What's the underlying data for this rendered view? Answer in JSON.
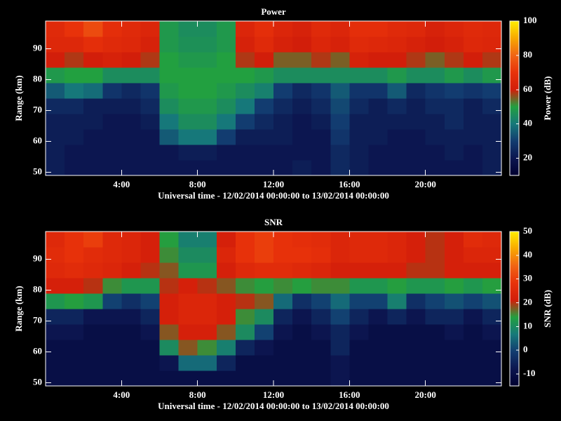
{
  "chart_data": [
    {
      "type": "heatmap",
      "title": "Power",
      "xlabel": "Universal time - 12/02/2014 00:00:00 to 13/02/2014 00:00:00",
      "ylabel": "Range (km)",
      "colorbar_label": "Power (dB)",
      "xlim": [
        0,
        24
      ],
      "xticks": [
        {
          "value": 4,
          "label": "4:00"
        },
        {
          "value": 8,
          "label": "8:00"
        },
        {
          "value": 12,
          "label": "12:00"
        },
        {
          "value": 16,
          "label": "16:00"
        },
        {
          "value": 20,
          "label": "20:00"
        }
      ],
      "ylim": [
        49,
        99
      ],
      "yticks": [
        50,
        60,
        70,
        80,
        90
      ],
      "clim": [
        10,
        100
      ],
      "cticks": [
        20,
        40,
        60,
        80,
        100
      ],
      "colormap": [
        "#000030",
        "#0c1650",
        "#123c70",
        "#16787a",
        "#22a040",
        "#d21e0a",
        "#e8320a",
        "#f06414",
        "#f8a800",
        "#ffee00"
      ],
      "xbins": [
        0,
        1,
        2,
        3,
        4,
        5,
        6,
        7,
        8,
        9,
        10,
        11,
        12,
        13,
        14,
        15,
        16,
        17,
        18,
        19,
        20,
        21,
        22,
        23,
        24
      ],
      "ybins": [
        49,
        54,
        59,
        64,
        69,
        74,
        79,
        84,
        89,
        94,
        99
      ],
      "z": [
        [
          22,
          20,
          20,
          20,
          20,
          20,
          20,
          20,
          20,
          20,
          20,
          20,
          20,
          22,
          20,
          25,
          22,
          20,
          20,
          20,
          20,
          20,
          20,
          22
        ],
        [
          22,
          20,
          20,
          20,
          20,
          20,
          20,
          22,
          22,
          20,
          20,
          20,
          20,
          20,
          20,
          25,
          22,
          20,
          20,
          20,
          20,
          22,
          20,
          22
        ],
        [
          22,
          22,
          20,
          20,
          20,
          20,
          35,
          40,
          40,
          30,
          22,
          22,
          22,
          20,
          20,
          28,
          22,
          22,
          20,
          20,
          22,
          22,
          22,
          22
        ],
        [
          22,
          22,
          22,
          20,
          20,
          22,
          40,
          45,
          45,
          40,
          30,
          25,
          22,
          20,
          22,
          30,
          22,
          22,
          22,
          22,
          22,
          25,
          22,
          22
        ],
        [
          25,
          25,
          22,
          22,
          22,
          25,
          45,
          48,
          48,
          45,
          40,
          30,
          25,
          22,
          25,
          32,
          25,
          22,
          25,
          22,
          25,
          25,
          22,
          25
        ],
        [
          35,
          40,
          38,
          28,
          25,
          28,
          48,
          50,
          50,
          48,
          45,
          42,
          30,
          25,
          28,
          35,
          28,
          28,
          35,
          25,
          28,
          30,
          28,
          30
        ],
        [
          48,
          50,
          50,
          45,
          45,
          45,
          50,
          50,
          50,
          50,
          50,
          48,
          45,
          45,
          45,
          45,
          45,
          45,
          48,
          45,
          45,
          48,
          45,
          48
        ],
        [
          60,
          58,
          60,
          62,
          60,
          58,
          50,
          48,
          48,
          50,
          58,
          60,
          55,
          55,
          58,
          55,
          62,
          60,
          60,
          58,
          55,
          58,
          60,
          58
        ],
        [
          65,
          65,
          68,
          66,
          65,
          62,
          48,
          46,
          46,
          48,
          62,
          66,
          62,
          60,
          64,
          62,
          66,
          65,
          64,
          62,
          60,
          62,
          65,
          64
        ],
        [
          66,
          70,
          75,
          68,
          66,
          64,
          48,
          45,
          45,
          48,
          64,
          68,
          64,
          62,
          66,
          64,
          68,
          68,
          66,
          65,
          62,
          64,
          66,
          65
        ]
      ]
    },
    {
      "type": "heatmap",
      "title": "SNR",
      "xlabel": "Universal time - 12/02/2014 00:00:00 to 13/02/2014 00:00:00",
      "ylabel": "Range (km)",
      "colorbar_label": "SNR (dB)",
      "xlim": [
        0,
        24
      ],
      "xticks": [
        {
          "value": 4,
          "label": "4:00"
        },
        {
          "value": 8,
          "label": "8:00"
        },
        {
          "value": 12,
          "label": "12:00"
        },
        {
          "value": 16,
          "label": "16:00"
        },
        {
          "value": 20,
          "label": "20:00"
        }
      ],
      "ylim": [
        49,
        99
      ],
      "yticks": [
        50,
        60,
        70,
        80,
        90
      ],
      "clim": [
        -15,
        50
      ],
      "cticks": [
        -10,
        0,
        10,
        20,
        30,
        40,
        50
      ],
      "colormap": [
        "#000030",
        "#0c1650",
        "#123c70",
        "#16787a",
        "#22a040",
        "#d21e0a",
        "#e8320a",
        "#f06414",
        "#f8a800",
        "#ffee00"
      ],
      "xbins": [
        0,
        1,
        2,
        3,
        4,
        5,
        6,
        7,
        8,
        9,
        10,
        11,
        12,
        13,
        14,
        15,
        16,
        17,
        18,
        19,
        20,
        21,
        22,
        23,
        24
      ],
      "ybins": [
        49,
        54,
        59,
        64,
        69,
        74,
        79,
        84,
        89,
        94,
        99
      ],
      "z": [
        [
          -10,
          -10,
          -10,
          -10,
          -10,
          -10,
          -10,
          -10,
          -10,
          -10,
          -10,
          -10,
          -10,
          -10,
          -10,
          -8,
          -10,
          -10,
          -10,
          -10,
          -10,
          -10,
          -10,
          -10
        ],
        [
          -10,
          -10,
          -10,
          -10,
          -10,
          -10,
          -8,
          5,
          5,
          -5,
          -10,
          -10,
          -10,
          -10,
          -10,
          -8,
          -10,
          -10,
          -10,
          -10,
          -10,
          -10,
          -10,
          -10
        ],
        [
          -10,
          -10,
          -10,
          -10,
          -10,
          -10,
          10,
          18,
          15,
          8,
          -5,
          -8,
          -10,
          -10,
          -10,
          -5,
          -10,
          -10,
          -10,
          -10,
          -10,
          -10,
          -10,
          -10
        ],
        [
          -8,
          -8,
          -10,
          -10,
          -10,
          -8,
          18,
          22,
          22,
          18,
          10,
          0,
          -8,
          -10,
          -8,
          -5,
          -8,
          -10,
          -10,
          -10,
          -10,
          -8,
          -10,
          -8
        ],
        [
          -5,
          -5,
          -8,
          -8,
          -8,
          -5,
          22,
          24,
          24,
          22,
          15,
          10,
          -5,
          -8,
          -5,
          0,
          -5,
          -8,
          -5,
          -8,
          -5,
          -5,
          -8,
          -5
        ],
        [
          12,
          14,
          12,
          0,
          -3,
          0,
          22,
          24,
          24,
          22,
          20,
          18,
          5,
          -3,
          0,
          5,
          0,
          0,
          8,
          -3,
          0,
          2,
          0,
          2
        ],
        [
          22,
          22,
          20,
          15,
          12,
          12,
          20,
          22,
          20,
          18,
          15,
          14,
          15,
          14,
          15,
          15,
          12,
          12,
          14,
          12,
          12,
          14,
          12,
          14
        ],
        [
          25,
          26,
          25,
          24,
          22,
          20,
          18,
          12,
          12,
          22,
          25,
          26,
          26,
          25,
          24,
          22,
          22,
          22,
          22,
          20,
          20,
          22,
          22,
          22
        ],
        [
          26,
          28,
          26,
          25,
          24,
          22,
          15,
          10,
          10,
          24,
          28,
          30,
          28,
          28,
          27,
          24,
          25,
          25,
          24,
          22,
          20,
          22,
          24,
          24
        ],
        [
          25,
          28,
          30,
          25,
          24,
          22,
          14,
          8,
          8,
          22,
          28,
          30,
          28,
          27,
          26,
          24,
          25,
          25,
          24,
          22,
          20,
          22,
          26,
          25
        ]
      ]
    }
  ]
}
